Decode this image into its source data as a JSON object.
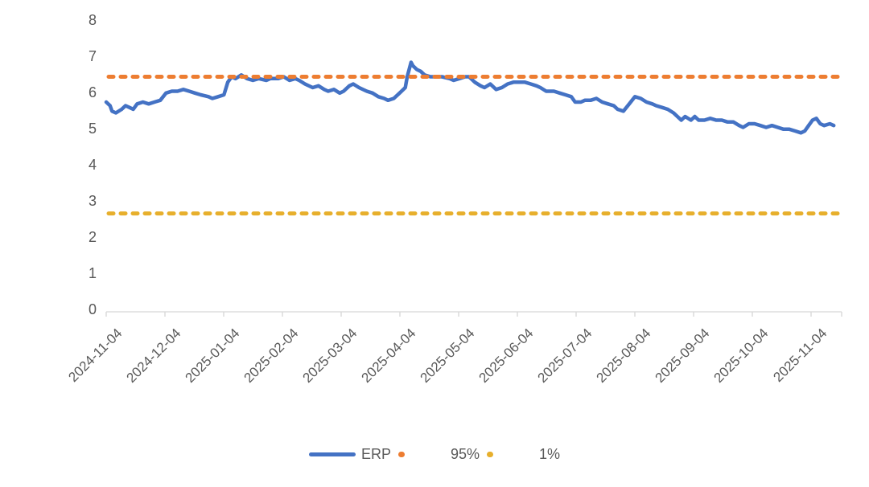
{
  "colors": {
    "erp_line": "#4472C4",
    "p95_line": "#ED7D31",
    "p1_line": "#E7AF2C",
    "axis_line": "#D6D6D6",
    "axis_text": "#595959",
    "background": "#FFFFFF"
  },
  "legend": {
    "erp_label": "ERP",
    "p95_label": "95%",
    "p1_label": "1%"
  },
  "chart_data": {
    "type": "line",
    "title": "",
    "xlabel": "",
    "ylabel": "",
    "grid": false,
    "legend_position": "bottom",
    "y_axis": {
      "min": 0,
      "max": 8,
      "step": 1,
      "tick_labels": [
        "0",
        "1",
        "2",
        "3",
        "4",
        "5",
        "6",
        "7",
        "8"
      ]
    },
    "x_axis": {
      "tick_labels": [
        "2024-11-04",
        "2024-12-04",
        "2025-01-04",
        "2025-02-04",
        "2025-03-04",
        "2025-04-04",
        "2025-05-04",
        "2025-06-04",
        "2025-07-04",
        "2025-08-04",
        "2025-09-04",
        "2025-10-04",
        "2025-11-04"
      ],
      "tick_interval": "1 month",
      "label_rotation_deg": 45
    },
    "series": [
      {
        "name": "ERP",
        "color": "#4472C4",
        "style": "solid",
        "points": [
          [
            "2024-11-04",
            5.8
          ],
          [
            "2024-11-06",
            5.7
          ],
          [
            "2024-11-07",
            5.55
          ],
          [
            "2024-11-09",
            5.5
          ],
          [
            "2024-11-12",
            5.6
          ],
          [
            "2024-11-14",
            5.7
          ],
          [
            "2024-11-16",
            5.65
          ],
          [
            "2024-11-18",
            5.6
          ],
          [
            "2024-11-20",
            5.75
          ],
          [
            "2024-11-23",
            5.8
          ],
          [
            "2024-11-26",
            5.75
          ],
          [
            "2024-11-29",
            5.8
          ],
          [
            "2024-12-02",
            5.85
          ],
          [
            "2024-12-05",
            6.05
          ],
          [
            "2024-12-08",
            6.1
          ],
          [
            "2024-12-11",
            6.1
          ],
          [
            "2024-12-14",
            6.15
          ],
          [
            "2024-12-17",
            6.1
          ],
          [
            "2024-12-20",
            6.05
          ],
          [
            "2024-12-23",
            6.0
          ],
          [
            "2024-12-27",
            5.95
          ],
          [
            "2024-12-29",
            5.9
          ],
          [
            "2025-01-01",
            5.95
          ],
          [
            "2025-01-04",
            6.0
          ],
          [
            "2025-01-06",
            6.35
          ],
          [
            "2025-01-08",
            6.5
          ],
          [
            "2025-01-10",
            6.45
          ],
          [
            "2025-01-13",
            6.55
          ],
          [
            "2025-01-16",
            6.45
          ],
          [
            "2025-01-19",
            6.4
          ],
          [
            "2025-01-22",
            6.45
          ],
          [
            "2025-01-26",
            6.4
          ],
          [
            "2025-01-28",
            6.45
          ],
          [
            "2025-02-01",
            6.45
          ],
          [
            "2025-02-04",
            6.5
          ],
          [
            "2025-02-07",
            6.4
          ],
          [
            "2025-02-10",
            6.45
          ],
          [
            "2025-02-12",
            6.4
          ],
          [
            "2025-02-15",
            6.3
          ],
          [
            "2025-02-19",
            6.2
          ],
          [
            "2025-02-22",
            6.25
          ],
          [
            "2025-02-25",
            6.15
          ],
          [
            "2025-02-27",
            6.1
          ],
          [
            "2025-03-02",
            6.15
          ],
          [
            "2025-03-05",
            6.05
          ],
          [
            "2025-03-07",
            6.1
          ],
          [
            "2025-03-10",
            6.25
          ],
          [
            "2025-03-12",
            6.3
          ],
          [
            "2025-03-15",
            6.2
          ],
          [
            "2025-03-19",
            6.1
          ],
          [
            "2025-03-22",
            6.05
          ],
          [
            "2025-03-25",
            5.95
          ],
          [
            "2025-03-28",
            5.9
          ],
          [
            "2025-03-30",
            5.85
          ],
          [
            "2025-04-02",
            5.9
          ],
          [
            "2025-04-05",
            6.05
          ],
          [
            "2025-04-08",
            6.2
          ],
          [
            "2025-04-09",
            6.5
          ],
          [
            "2025-04-11",
            6.9
          ],
          [
            "2025-04-12",
            6.8
          ],
          [
            "2025-04-14",
            6.7
          ],
          [
            "2025-04-16",
            6.65
          ],
          [
            "2025-04-18",
            6.55
          ],
          [
            "2025-04-21",
            6.5
          ],
          [
            "2025-04-24",
            6.5
          ],
          [
            "2025-04-27",
            6.5
          ],
          [
            "2025-05-01",
            6.45
          ],
          [
            "2025-05-03",
            6.4
          ],
          [
            "2025-05-06",
            6.45
          ],
          [
            "2025-05-09",
            6.5
          ],
          [
            "2025-05-11",
            6.5
          ],
          [
            "2025-05-14",
            6.35
          ],
          [
            "2025-05-17",
            6.25
          ],
          [
            "2025-05-19",
            6.2
          ],
          [
            "2025-05-22",
            6.3
          ],
          [
            "2025-05-25",
            6.15
          ],
          [
            "2025-05-28",
            6.2
          ],
          [
            "2025-05-31",
            6.3
          ],
          [
            "2025-06-03",
            6.35
          ],
          [
            "2025-06-06",
            6.35
          ],
          [
            "2025-06-09",
            6.35
          ],
          [
            "2025-06-12",
            6.3
          ],
          [
            "2025-06-15",
            6.25
          ],
          [
            "2025-06-17",
            6.2
          ],
          [
            "2025-06-20",
            6.1
          ],
          [
            "2025-06-24",
            6.1
          ],
          [
            "2025-06-27",
            6.05
          ],
          [
            "2025-06-30",
            6.0
          ],
          [
            "2025-07-03",
            5.95
          ],
          [
            "2025-07-05",
            5.8
          ],
          [
            "2025-07-08",
            5.8
          ],
          [
            "2025-07-10",
            5.85
          ],
          [
            "2025-07-13",
            5.85
          ],
          [
            "2025-07-16",
            5.9
          ],
          [
            "2025-07-19",
            5.8
          ],
          [
            "2025-07-22",
            5.75
          ],
          [
            "2025-07-25",
            5.7
          ],
          [
            "2025-07-27",
            5.6
          ],
          [
            "2025-07-30",
            5.55
          ],
          [
            "2025-08-02",
            5.75
          ],
          [
            "2025-08-05",
            5.95
          ],
          [
            "2025-08-08",
            5.9
          ],
          [
            "2025-08-11",
            5.8
          ],
          [
            "2025-08-14",
            5.75
          ],
          [
            "2025-08-16",
            5.7
          ],
          [
            "2025-08-19",
            5.65
          ],
          [
            "2025-08-22",
            5.6
          ],
          [
            "2025-08-25",
            5.5
          ],
          [
            "2025-08-27",
            5.4
          ],
          [
            "2025-08-29",
            5.3
          ],
          [
            "2025-08-31",
            5.4
          ],
          [
            "2025-09-03",
            5.3
          ],
          [
            "2025-09-05",
            5.4
          ],
          [
            "2025-09-07",
            5.3
          ],
          [
            "2025-09-10",
            5.3
          ],
          [
            "2025-09-13",
            5.35
          ],
          [
            "2025-09-16",
            5.3
          ],
          [
            "2025-09-19",
            5.3
          ],
          [
            "2025-09-22",
            5.25
          ],
          [
            "2025-09-25",
            5.25
          ],
          [
            "2025-09-28",
            5.15
          ],
          [
            "2025-09-30",
            5.1
          ],
          [
            "2025-10-03",
            5.2
          ],
          [
            "2025-10-06",
            5.2
          ],
          [
            "2025-10-09",
            5.15
          ],
          [
            "2025-10-12",
            5.1
          ],
          [
            "2025-10-15",
            5.15
          ],
          [
            "2025-10-18",
            5.1
          ],
          [
            "2025-10-21",
            5.05
          ],
          [
            "2025-10-24",
            5.05
          ],
          [
            "2025-10-27",
            5.0
          ],
          [
            "2025-10-30",
            4.95
          ],
          [
            "2025-11-01",
            5.0
          ],
          [
            "2025-11-03",
            5.15
          ],
          [
            "2025-11-05",
            5.3
          ],
          [
            "2025-11-07",
            5.35
          ],
          [
            "2025-11-09",
            5.2
          ],
          [
            "2025-11-11",
            5.15
          ],
          [
            "2025-11-14",
            5.2
          ],
          [
            "2025-11-16",
            5.15
          ]
        ]
      },
      {
        "name": "95%",
        "color": "#ED7D31",
        "style": "dashed",
        "constant_value": 6.5
      },
      {
        "name": "1%",
        "color": "#E7AF2C",
        "style": "dashed",
        "constant_value": 2.72
      }
    ]
  }
}
